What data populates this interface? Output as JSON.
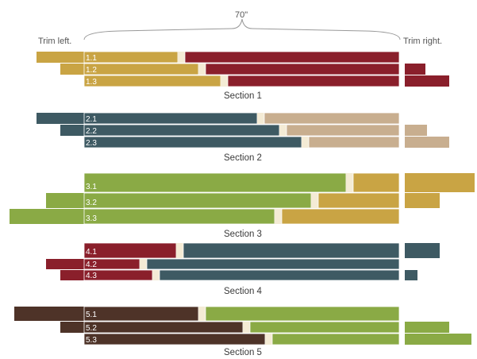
{
  "header": {
    "trim_left": "Trim left.",
    "trim_right": "Trim right.",
    "length": "70\""
  },
  "colors": {
    "gold": "#c9a444",
    "burgundy": "#8a1f2b",
    "slate": "#3e5a63",
    "tan": "#c8ae8f",
    "green": "#8aaa45",
    "brown": "#4e3328",
    "seam": "#f4ebd5"
  },
  "sections": [
    {
      "label": "Section 1",
      "strips": [
        {
          "label": "1.1",
          "left": "gold",
          "right": "burgundy",
          "trim_left": "long",
          "trim_right": "none"
        },
        {
          "label": "1.2",
          "left": "gold",
          "right": "burgundy",
          "trim_left": "short",
          "trim_right": "short"
        },
        {
          "label": "1.3",
          "left": "gold",
          "right": "burgundy",
          "trim_left": "none",
          "trim_right": "long"
        }
      ]
    },
    {
      "label": "Section 2",
      "strips": [
        {
          "label": "2.1",
          "left": "slate",
          "right": "tan",
          "trim_left": "long",
          "trim_right": "none"
        },
        {
          "label": "2.2",
          "left": "slate",
          "right": "tan",
          "trim_left": "short",
          "trim_right": "short"
        },
        {
          "label": "2.3",
          "left": "slate",
          "right": "tan",
          "trim_left": "none",
          "trim_right": "long"
        }
      ]
    },
    {
      "label": "Section 3",
      "strips": [
        {
          "label": "3.1",
          "left": "green",
          "right": "gold",
          "trim_left": "none",
          "trim_right": "long"
        },
        {
          "label": "3.2",
          "left": "green",
          "right": "gold",
          "trim_left": "short",
          "trim_right": "short"
        },
        {
          "label": "3.3",
          "left": "green",
          "right": "gold",
          "trim_left": "long",
          "trim_right": "none"
        }
      ]
    },
    {
      "label": "Section 4",
      "strips": [
        {
          "label": "4.1",
          "left": "burgundy",
          "right": "slate",
          "trim_left": "none",
          "trim_right": "long"
        },
        {
          "label": "4.2",
          "left": "burgundy",
          "right": "slate",
          "trim_left": "long",
          "trim_right": "none"
        },
        {
          "label": "4.3",
          "left": "burgundy",
          "right": "slate",
          "trim_left": "short",
          "trim_right": "short"
        }
      ]
    },
    {
      "label": "Section 5",
      "strips": [
        {
          "label": "5.1",
          "left": "brown",
          "right": "green",
          "trim_left": "long",
          "trim_right": "none"
        },
        {
          "label": "5.2",
          "left": "brown",
          "right": "green",
          "trim_left": "short",
          "trim_right": "short"
        },
        {
          "label": "5.3",
          "left": "brown",
          "right": "green",
          "trim_left": "none",
          "trim_right": "long"
        }
      ]
    }
  ]
}
